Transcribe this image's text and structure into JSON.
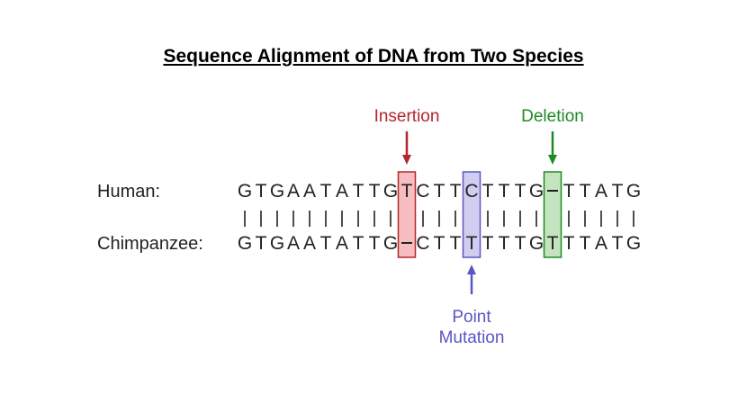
{
  "title": "Sequence Alignment of DNA from Two Species",
  "rows": {
    "human": {
      "label": "Human:",
      "sequence": "GTGAATATTGTCTTCTTTG-TTATG"
    },
    "chimp": {
      "label": "Chimpanzee:",
      "sequence": "GTGAATATTG-CTTTTTTGTTTATG"
    }
  },
  "annotations": [
    {
      "id": "insertion",
      "label": [
        "Insertion"
      ],
      "column": 10,
      "color": "#b5262b",
      "fill": "#f4b3b5",
      "side": "top"
    },
    {
      "id": "deletion",
      "label": [
        "Deletion"
      ],
      "column": 19,
      "color": "#1e8a26",
      "fill": "#b9dfb3",
      "side": "top"
    },
    {
      "id": "point-mutation",
      "label": [
        "Point",
        "Mutation"
      ],
      "column": 14,
      "color": "#5a55c4",
      "fill": "#c7c6ef",
      "side": "bottom"
    }
  ]
}
